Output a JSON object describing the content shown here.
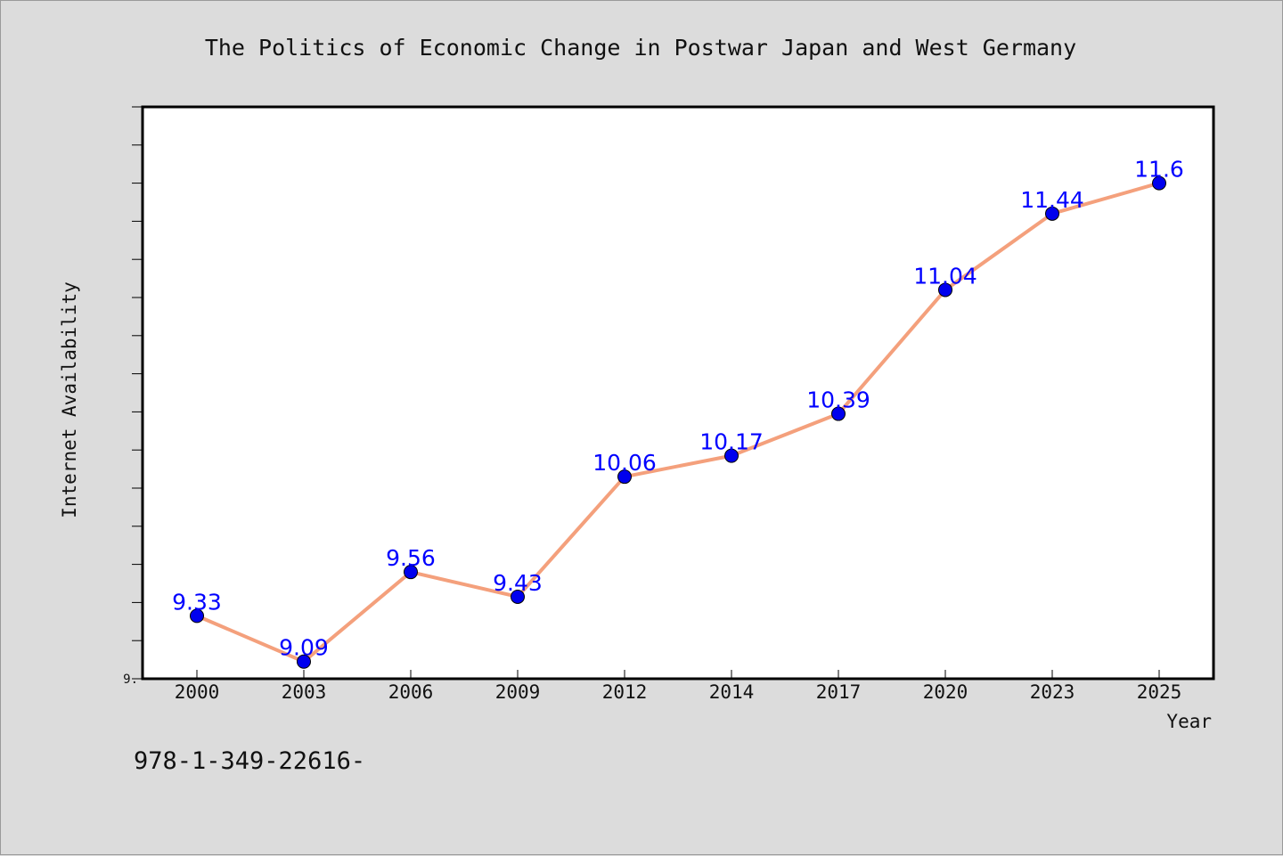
{
  "chart_data": {
    "type": "line",
    "title": "The Politics of Economic Change in Postwar Japan and West Germany",
    "xlabel": "Year",
    "ylabel": "Internet Availability",
    "categories": [
      "2000",
      "2003",
      "2006",
      "2009",
      "2012",
      "2014",
      "2017",
      "2020",
      "2023",
      "2025"
    ],
    "series": [
      {
        "values": [
          9.33,
          9.09,
          9.56,
          9.43,
          10.06,
          10.17,
          10.39,
          11.04,
          11.44,
          11.6
        ],
        "labels": [
          "9.33",
          "9.09",
          "9.56",
          "9.43",
          "10.06",
          "10.17",
          "10.39",
          "11.04",
          "11.44",
          "11.6"
        ],
        "line_color": "#f4a07c",
        "marker_color": "#0000ee"
      }
    ],
    "y_tick_labels": [
      "9."
    ],
    "ylim": [
      9.0,
      12.0
    ],
    "grid": false,
    "legend": "none"
  },
  "footer_text": "978-1-349-22616-"
}
